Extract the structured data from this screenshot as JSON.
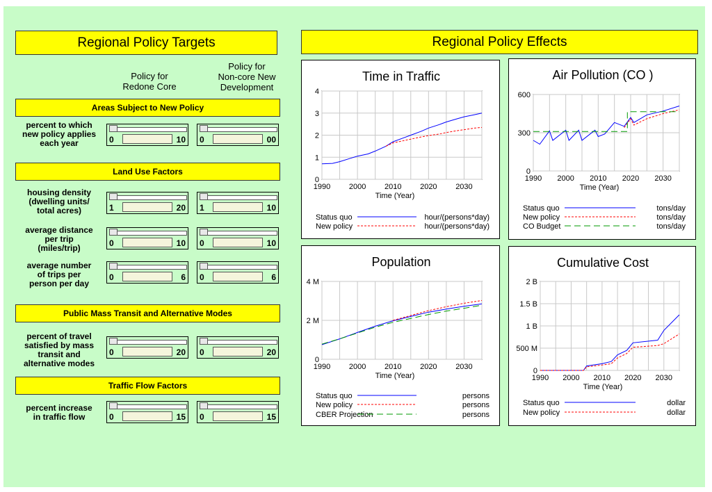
{
  "left": {
    "title": "Regional Policy Targets",
    "col1": [
      "Policy for",
      "Redone Core"
    ],
    "col2": [
      "Policy for",
      "Non-core New",
      "Development"
    ],
    "sections": [
      {
        "title": "Areas Subject to New Policy",
        "rows": [
          {
            "label": [
              "percent to which",
              "new policy applies",
              "each year"
            ],
            "s1": {
              "min": "0",
              "max": "10"
            },
            "s2": {
              "min": "0",
              "max": "00"
            }
          }
        ]
      },
      {
        "title": "Land Use Factors",
        "rows": [
          {
            "label": [
              "housing density",
              "(dwelling units/",
              "total acres)"
            ],
            "s1": {
              "min": "1",
              "max": "20"
            },
            "s2": {
              "min": "1",
              "max": "10"
            }
          },
          {
            "label": [
              "average distance",
              "per trip",
              "(miles/trip)"
            ],
            "s1": {
              "min": "0",
              "max": "10"
            },
            "s2": {
              "min": "0",
              "max": "10"
            }
          },
          {
            "label": [
              "average number",
              "of trips per",
              "person per day"
            ],
            "s1": {
              "min": "0",
              "max": "6"
            },
            "s2": {
              "min": "0",
              "max": "6"
            }
          }
        ]
      },
      {
        "title": "Public Mass Transit and Alternative Modes",
        "rows": [
          {
            "label": [
              "percent of travel",
              "satisfied by mass",
              "transit and",
              "alternative modes"
            ],
            "s1": {
              "min": "0",
              "max": "20"
            },
            "s2": {
              "min": "0",
              "max": "20"
            }
          }
        ]
      },
      {
        "title": "Traffic Flow Factors",
        "rows": [
          {
            "label": [
              "percent increase",
              "in traffic flow"
            ],
            "s1": {
              "min": "0",
              "max": "15"
            },
            "s2": {
              "min": "0",
              "max": "15"
            }
          }
        ]
      }
    ]
  },
  "right": {
    "title": "Regional Policy Effects"
  },
  "colors": {
    "status_quo": "#0000ff",
    "new_policy": "#ff0000",
    "third": "#009900",
    "banner": "#ffff00",
    "background": "#c8fcc8"
  },
  "chart_data": [
    {
      "type": "line",
      "title": "Time in Traffic",
      "xlabel": "Time (Year)",
      "xlim": [
        1990,
        2035
      ],
      "xticks": [
        "1990",
        "2000",
        "2010",
        "2020",
        "2030"
      ],
      "ylim": [
        0,
        4
      ],
      "yticks": [
        "0",
        "1",
        "2",
        "3",
        "4"
      ],
      "series": [
        {
          "name": "Status quo",
          "unit": "hour/(persons*day)",
          "x": [
            1990,
            1993,
            1995,
            1998,
            2000,
            2003,
            2005,
            2008,
            2010,
            2013,
            2015,
            2018,
            2020,
            2023,
            2025,
            2028,
            2030,
            2033,
            2035
          ],
          "values": [
            0.7,
            0.72,
            0.8,
            0.95,
            1.05,
            1.15,
            1.28,
            1.5,
            1.7,
            1.88,
            2.0,
            2.18,
            2.32,
            2.48,
            2.6,
            2.74,
            2.83,
            2.93,
            3.0
          ]
        },
        {
          "name": "New policy",
          "unit": "hour/(persons*day)",
          "x": [
            2008,
            2010,
            2013,
            2015,
            2018,
            2020,
            2023,
            2025,
            2028,
            2030,
            2033,
            2035
          ],
          "values": [
            1.5,
            1.65,
            1.75,
            1.82,
            1.92,
            1.98,
            2.05,
            2.12,
            2.2,
            2.25,
            2.32,
            2.35
          ]
        }
      ]
    },
    {
      "type": "line",
      "title": "Air Pollution (CO )",
      "xlabel": "Time (Year)",
      "xlim": [
        1990,
        2035
      ],
      "xticks": [
        "1990",
        "2000",
        "2010",
        "2020",
        "2030"
      ],
      "ylim": [
        0,
        600
      ],
      "yticks": [
        "0",
        "300",
        "600"
      ],
      "series": [
        {
          "name": "Status quo",
          "unit": "tons/day",
          "x": [
            1990,
            1992,
            1995,
            1996,
            2000,
            2001,
            2004,
            2005,
            2009,
            2010,
            2012,
            2015,
            2018,
            2020,
            2021,
            2025,
            2030,
            2035
          ],
          "values": [
            240,
            210,
            315,
            240,
            320,
            240,
            320,
            240,
            320,
            270,
            290,
            380,
            350,
            420,
            380,
            440,
            470,
            510
          ]
        },
        {
          "name": "New policy",
          "unit": "tons/day",
          "x": [
            2018,
            2020,
            2021,
            2025,
            2030,
            2035
          ],
          "values": [
            340,
            410,
            360,
            410,
            450,
            480
          ]
        },
        {
          "name": "CO Budget",
          "unit": "tons/day",
          "x": [
            1990,
            2019,
            2019,
            2035
          ],
          "values": [
            310,
            310,
            465,
            465
          ]
        }
      ]
    },
    {
      "type": "line",
      "title": "Population",
      "xlabel": "Time (Year)",
      "xlim": [
        1990,
        2035
      ],
      "xticks": [
        "1990",
        "2000",
        "2010",
        "2020",
        "2030"
      ],
      "ylim": [
        0,
        4
      ],
      "yticks": [
        "0",
        "2 M",
        "4 M"
      ],
      "series": [
        {
          "name": "Status quo",
          "unit": "persons",
          "x": [
            1990,
            1995,
            2000,
            2005,
            2010,
            2015,
            2020,
            2025,
            2030,
            2035
          ],
          "values": [
            0.75,
            1.05,
            1.38,
            1.7,
            1.98,
            2.2,
            2.42,
            2.58,
            2.72,
            2.85
          ]
        },
        {
          "name": "New policy",
          "unit": "persons",
          "x": [
            2010,
            2015,
            2020,
            2025,
            2030,
            2035
          ],
          "values": [
            2.0,
            2.25,
            2.5,
            2.7,
            2.88,
            3.02
          ]
        },
        {
          "name": "CBER Projection",
          "unit": "persons",
          "x": [
            1990,
            1995,
            2000,
            2005,
            2010,
            2015,
            2020,
            2025,
            2030,
            2035
          ],
          "values": [
            0.78,
            1.05,
            1.35,
            1.65,
            1.9,
            2.1,
            2.3,
            2.48,
            2.62,
            2.78
          ]
        }
      ]
    },
    {
      "type": "line",
      "title": "Cumulative Cost",
      "xlabel": "Time (Year)",
      "xlim": [
        1990,
        2035
      ],
      "xticks": [
        "1990",
        "2000",
        "2010",
        "2020",
        "2030"
      ],
      "ylim": [
        0,
        2
      ],
      "yticks": [
        "0",
        "500 M",
        "1 B",
        "1.5 B",
        "2 B"
      ],
      "series": [
        {
          "name": "Status quo",
          "unit": "dollar",
          "x": [
            1990,
            2004,
            2005,
            2010,
            2013,
            2015,
            2018,
            2020,
            2028,
            2030,
            2035
          ],
          "values": [
            0,
            0,
            0.1,
            0.15,
            0.2,
            0.35,
            0.45,
            0.62,
            0.68,
            0.9,
            1.25
          ]
        },
        {
          "name": "New policy",
          "unit": "dollar",
          "x": [
            1990,
            2004,
            2005,
            2010,
            2013,
            2015,
            2018,
            2020,
            2028,
            2030,
            2035
          ],
          "values": [
            0,
            0,
            0.08,
            0.12,
            0.15,
            0.28,
            0.38,
            0.52,
            0.56,
            0.6,
            0.82
          ]
        }
      ]
    }
  ]
}
